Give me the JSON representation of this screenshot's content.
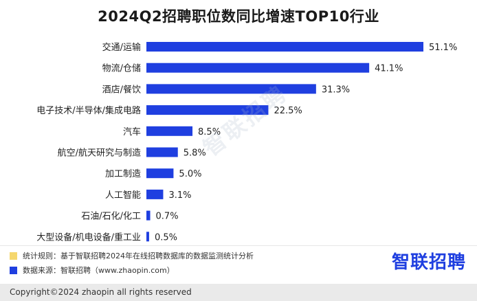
{
  "chart_data": {
    "type": "bar",
    "orientation": "horizontal",
    "title": "2024Q2招聘职位数同比增速TOP10行业",
    "categories": [
      "交通/运输",
      "物流/仓储",
      "酒店/餐饮",
      "电子技术/半导体/集成电路",
      "汽车",
      "航空/航天研究与制造",
      "加工制造",
      "人工智能",
      "石油/石化/化工",
      "大型设备/机电设备/重工业"
    ],
    "values": [
      51.1,
      41.1,
      31.3,
      22.5,
      8.5,
      5.8,
      5.0,
      3.1,
      0.7,
      0.5
    ],
    "value_labels": [
      "51.1%",
      "41.1%",
      "31.3%",
      "22.5%",
      "8.5%",
      "5.8%",
      "5.0%",
      "3.1%",
      "0.7%",
      "0.5%"
    ],
    "xlim": [
      0,
      51.1
    ],
    "grid": false,
    "bar_color": "#1f3fe0"
  },
  "watermark": "智联招聘",
  "notes": [
    {
      "color": "#f5d76e",
      "text": "统计规则：基于智联招聘2024年在线招聘数据库的数据监测统计分析"
    },
    {
      "color": "#1f3fe0",
      "text": "数据来源：智联招聘（www.zhaopin.com）"
    }
  ],
  "brand": "智联招聘",
  "copyright": "Copyright©2024 zhaopin all rights reserved"
}
